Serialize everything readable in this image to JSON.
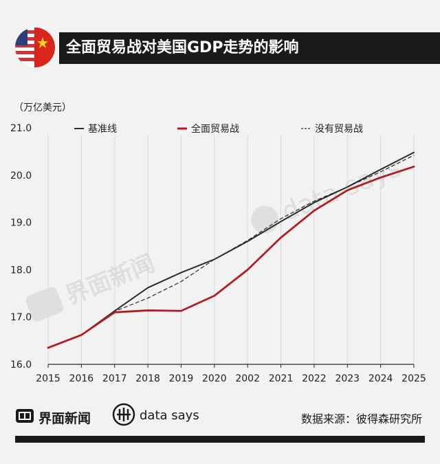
{
  "header": {
    "title": "全面贸易战对美国GDP走势的影响"
  },
  "unit_label": "（万亿美元）",
  "footer": {
    "brand": "界面新闻",
    "datasays": "data says",
    "source": "数据来源：彼得森研究所"
  },
  "watermark": {
    "brand": "界面新闻",
    "datasays": "data says"
  },
  "colors": {
    "baseline": "#2b2b2b",
    "tradewar": "#b01e23",
    "notradewar": "#2b2b2b",
    "header_bg": "#1a1a1a"
  },
  "chart_data": {
    "type": "line",
    "title": "全面贸易战对美国GDP走势的影响",
    "ylabel": "（万亿美元）",
    "xlabel": "",
    "categories": [
      "2015",
      "2016",
      "2017",
      "2018",
      "2019",
      "2020",
      "2002",
      "2021",
      "2022",
      "2023",
      "2024",
      "2025"
    ],
    "ylim": [
      16.0,
      21.0
    ],
    "yticks": [
      "16.0",
      "17.0",
      "18.0",
      "19.0",
      "20.0",
      "21.0"
    ],
    "legend_position": "top",
    "series": [
      {
        "name": "基准线",
        "style": "solid",
        "color": "#2b2b2b",
        "values": [
          16.35,
          16.62,
          17.13,
          17.62,
          17.94,
          18.22,
          18.6,
          19.02,
          19.42,
          19.75,
          20.12,
          20.48
        ]
      },
      {
        "name": "全面贸易战",
        "style": "solid-thick",
        "color": "#b01e23",
        "values": [
          16.35,
          16.62,
          17.1,
          17.14,
          17.13,
          17.45,
          18.0,
          18.68,
          19.25,
          19.68,
          19.95,
          20.18
        ]
      },
      {
        "name": "没有贸易战",
        "style": "dashed",
        "color": "#2b2b2b",
        "values": [
          16.35,
          16.62,
          17.12,
          17.4,
          17.75,
          18.22,
          18.62,
          19.08,
          19.45,
          19.75,
          20.07,
          20.42
        ]
      }
    ]
  }
}
